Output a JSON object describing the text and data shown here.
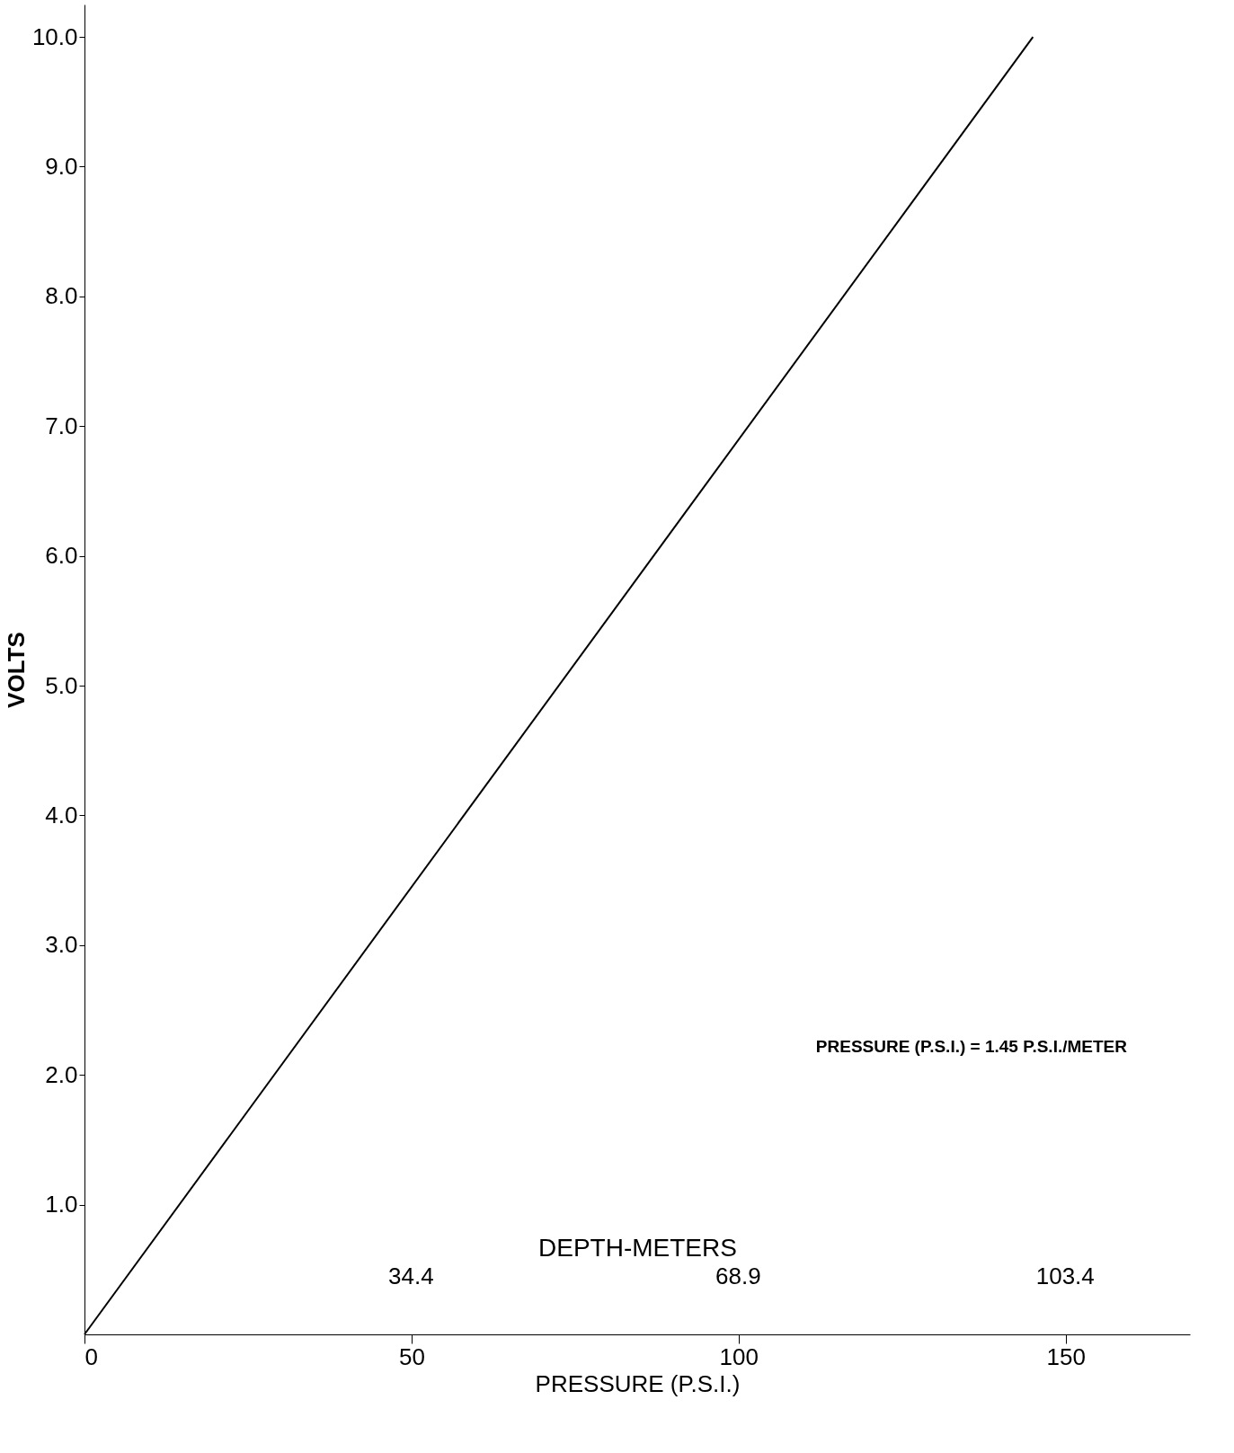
{
  "chart_data": {
    "type": "line",
    "xlabel": "PRESSURE (P.S.I.)",
    "ylabel": "VOLTS",
    "x2label": "DEPTH-METERS",
    "x": [
      0,
      145
    ],
    "series": [
      {
        "color": "#000000",
        "values": [
          0,
          10
        ]
      }
    ],
    "xlim": [
      0,
      169
    ],
    "xticks": [
      0,
      50,
      100,
      150
    ],
    "x2lim": [
      0,
      116.6
    ],
    "x2ticks": [
      34.4,
      68.9,
      103.4
    ],
    "ylim": [
      0,
      10.25
    ],
    "yticks": [
      {
        "value": 1,
        "label": "1.0"
      },
      {
        "value": 2,
        "label": "2.0"
      },
      {
        "value": 3,
        "label": "3.0"
      },
      {
        "value": 4,
        "label": "4.0"
      },
      {
        "value": 5,
        "label": "5.0"
      },
      {
        "value": 6,
        "label": "6.0"
      },
      {
        "value": 7,
        "label": "7.0"
      },
      {
        "value": 8,
        "label": "8.0"
      },
      {
        "value": 9,
        "label": "9.0"
      },
      {
        "value": 10,
        "label": "10.0"
      }
    ],
    "annotations": [
      "PRESSURE (P.S.I.) = 1.45 P.S.I./METER"
    ],
    "marker": "none",
    "line_style": "solid"
  }
}
